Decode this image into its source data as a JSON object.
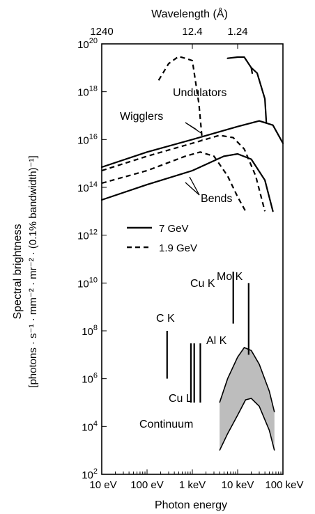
{
  "chart_data": {
    "type": "line",
    "title": "",
    "xlabel": "Photon energy",
    "ylabel_line1": "Spectral brightness",
    "ylabel_line2": "[photons · s⁻¹ · mm⁻² · mr⁻² · (0.1% bandwidth)⁻¹]",
    "top_axis_label": "Wavelength (Å)",
    "x_scale": "log",
    "y_scale": "log",
    "xlim_eV": [
      10,
      100000
    ],
    "ylim": [
      100,
      1e+20
    ],
    "x_ticks": [
      {
        "value": 10,
        "label": "10 eV"
      },
      {
        "value": 100,
        "label": "100 eV"
      },
      {
        "value": 1000,
        "label": "1 keV"
      },
      {
        "value": 10000,
        "label": "10 keV"
      },
      {
        "value": 100000,
        "label": "100 keV"
      }
    ],
    "y_ticks": [
      {
        "exp": 2,
        "base": "10",
        "sup": "2"
      },
      {
        "exp": 4,
        "base": "10",
        "sup": "4"
      },
      {
        "exp": 6,
        "base": "10",
        "sup": "6"
      },
      {
        "exp": 8,
        "base": "10",
        "sup": "8"
      },
      {
        "exp": 10,
        "base": "10",
        "sup": "10"
      },
      {
        "exp": 12,
        "base": "10",
        "sup": "12"
      },
      {
        "exp": 14,
        "base": "10",
        "sup": "14"
      },
      {
        "exp": 16,
        "base": "10",
        "sup": "16"
      },
      {
        "exp": 18,
        "base": "10",
        "sup": "18"
      },
      {
        "exp": 20,
        "base": "10",
        "sup": "20"
      }
    ],
    "top_ticks": [
      {
        "energy_eV": 10,
        "label": "1240"
      },
      {
        "energy_eV": 1000,
        "label": "12.4"
      },
      {
        "energy_eV": 10000,
        "label": "1.24"
      }
    ],
    "legend": [
      {
        "label": "7 GeV",
        "style": "solid"
      },
      {
        "label": "1.9 GeV",
        "style": "dashed"
      }
    ],
    "series": [
      {
        "group": "Undulators",
        "style": "solid",
        "points": [
          [
            6000,
            2.5e+19
          ],
          [
            10000,
            2.8e+19
          ],
          [
            14000,
            2.8e+19
          ],
          [
            20000,
            1e+19
          ],
          [
            21000,
            6e+18
          ]
        ]
      },
      {
        "group": "Undulators",
        "style": "solid",
        "points": [
          [
            20000,
            1e+19
          ],
          [
            27000,
            6e+18
          ],
          [
            40000,
            5e+17
          ],
          [
            43000,
            5e+16
          ]
        ]
      },
      {
        "group": "Undulators",
        "style": "dashed",
        "points": [
          [
            180,
            3e+18
          ],
          [
            300,
            1.5e+19
          ],
          [
            500,
            3e+19
          ],
          [
            700,
            2.5e+19
          ],
          [
            1000,
            2e+19
          ],
          [
            1400,
            3e+17
          ],
          [
            1650,
            1e+16
          ]
        ]
      },
      {
        "group": "Wigglers",
        "style": "solid",
        "points": [
          [
            10,
            700000000000000.0
          ],
          [
            100,
            3000000000000000.0
          ],
          [
            1000,
            1e+16
          ],
          [
            10000,
            3.5e+16
          ],
          [
            30000,
            6e+16
          ],
          [
            60000,
            4e+16
          ],
          [
            100000,
            7000000000000000.0
          ]
        ]
      },
      {
        "group": "Wigglers",
        "style": "dashed",
        "points": [
          [
            10,
            500000000000000.0
          ],
          [
            100,
            2000000000000000.0
          ],
          [
            1000,
            7000000000000000.0
          ],
          [
            4000,
            1.5e+16
          ],
          [
            8000,
            1.2e+16
          ],
          [
            14000,
            4000000000000000.0
          ],
          [
            25000,
            300000000000000.0
          ],
          [
            40000,
            10000000000000.0
          ]
        ]
      },
      {
        "group": "Bends",
        "style": "dashed",
        "points": [
          [
            10,
            150000000000000.0
          ],
          [
            100,
            500000000000000.0
          ],
          [
            700,
            2000000000000000.0
          ],
          [
            1500,
            3000000000000000.0
          ],
          [
            3000,
            2000000000000000.0
          ],
          [
            6000,
            300000000000000.0
          ],
          [
            10000,
            40000000000000.0
          ],
          [
            15000,
            10000000000000.0
          ]
        ]
      },
      {
        "group": "Bends",
        "style": "solid",
        "points": [
          [
            10,
            30000000000000.0
          ],
          [
            100,
            130000000000000.0
          ],
          [
            1000,
            500000000000000.0
          ],
          [
            5000,
            2000000000000000.0
          ],
          [
            10000,
            2500000000000000.0
          ],
          [
            20000,
            1500000000000000.0
          ],
          [
            40000,
            200000000000000.0
          ],
          [
            60000,
            10000000000000.0
          ]
        ]
      }
    ],
    "continuum": {
      "upper": [
        [
          4000,
          100000.0
        ],
        [
          6000,
          1000000.0
        ],
        [
          10000,
          8000000.0
        ],
        [
          14000,
          20000000.0
        ],
        [
          20000,
          15000000.0
        ],
        [
          30000,
          4000000.0
        ],
        [
          50000,
          300000.0
        ],
        [
          65000,
          40000.0
        ]
      ],
      "lower": [
        [
          4000,
          1000.0
        ],
        [
          6000,
          5000.0
        ],
        [
          10000,
          30000.0
        ],
        [
          15000,
          130000.0
        ],
        [
          20000,
          150000.0
        ],
        [
          30000,
          70000.0
        ],
        [
          50000,
          7000.0
        ],
        [
          65000,
          1000.0
        ]
      ]
    },
    "characteristic_lines": [
      {
        "label": "C K",
        "energy_eV": 277,
        "y_low": 1000000.0,
        "y_high": 100000000.0
      },
      {
        "label": "Cu L",
        "energy_eV": 930,
        "y_low": 100000.0,
        "y_high": 30000000.0
      },
      {
        "label": "Cu L",
        "energy_eV": 1100,
        "y_low": 100000.0,
        "y_high": 30000000.0
      },
      {
        "label": "Al K",
        "energy_eV": 1500,
        "y_low": 100000.0,
        "y_high": 30000000.0
      },
      {
        "label": "Cu K",
        "energy_eV": 8000,
        "y_low": 200000000.0,
        "y_high": 30000000000.0
      },
      {
        "label": "Mo K",
        "energy_eV": 17500,
        "y_low": 10000000.0,
        "y_high": 10000000000.0
      }
    ],
    "labels": {
      "undulators": "Undulators",
      "wigglers": "Wigglers",
      "bends": "Bends",
      "continuum": "Continuum",
      "c_k": "C K",
      "cu_l": "Cu L",
      "al_k": "Al K",
      "cu_k": "Cu K",
      "mo_k": "Mo K"
    },
    "colors": {
      "line": "#000000",
      "continuum_fill": "#bdbdbd"
    }
  }
}
